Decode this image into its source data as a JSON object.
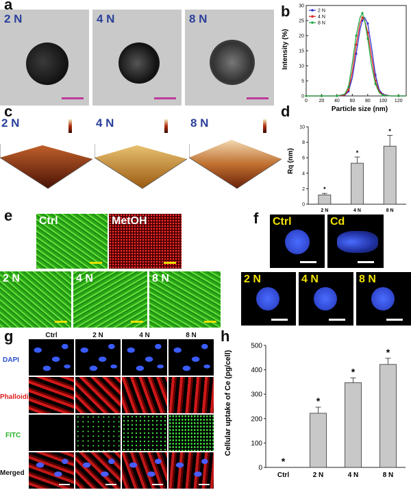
{
  "panels": {
    "a": "a",
    "b": "b",
    "c": "c",
    "d": "d",
    "e": "e",
    "f": "f",
    "g": "g",
    "h": "h"
  },
  "panel_a": {
    "images": [
      "2 N",
      "4 N",
      "8 N"
    ]
  },
  "panel_c": {
    "images": [
      "2 N",
      "4 N",
      "8 N"
    ]
  },
  "panel_e": {
    "top": [
      "Ctrl",
      "MetOH"
    ],
    "bottom": [
      "2 N",
      "4 N",
      "8 N"
    ]
  },
  "panel_f": {
    "top": [
      "Ctrl",
      "Cd"
    ],
    "bottom": [
      "2 N",
      "4 N",
      "8 N"
    ]
  },
  "panel_g": {
    "columns": [
      "Ctrl",
      "2 N",
      "4 N",
      "8 N"
    ],
    "rows": [
      "DAPI",
      "Phalloidin",
      "FITC",
      "Merged"
    ],
    "row_colors": [
      "#2b4fd0",
      "#e02020",
      "#22b022",
      "#111111"
    ]
  },
  "colors": {
    "scale_bar_tem": "#c0399a",
    "label_blue": "#2a3f9a",
    "series_2N": "#3333cc",
    "series_4N": "#dd2222",
    "series_8N": "#22aa44"
  },
  "chart_data": [
    {
      "panel": "b",
      "type": "line",
      "xlabel": "Particle size (nm)",
      "ylabel": "Intensity (%)",
      "xlim": [
        0,
        130
      ],
      "ylim": [
        0,
        30
      ],
      "xticks": [
        0,
        20,
        40,
        60,
        80,
        100,
        120
      ],
      "yticks": [
        0,
        5,
        10,
        15,
        20,
        25,
        30
      ],
      "legend": "top-left",
      "x": [
        0,
        10,
        20,
        30,
        40,
        50,
        55,
        60,
        65,
        70,
        73,
        76,
        80,
        85,
        90,
        95,
        100,
        110,
        120,
        130
      ],
      "series": [
        {
          "name": "2 N",
          "color": "#3333cc",
          "values": [
            0,
            0,
            0,
            0,
            0,
            0.2,
            1.5,
            6,
            14,
            22,
            25,
            26,
            24,
            16,
            7,
            2,
            0.5,
            0,
            0,
            0
          ]
        },
        {
          "name": "4 N",
          "color": "#dd2222",
          "values": [
            0,
            0,
            0,
            0,
            0,
            0.3,
            2,
            8,
            17,
            24,
            26,
            25,
            21,
            13,
            5,
            1.5,
            0.3,
            0,
            0,
            0
          ]
        },
        {
          "name": "8 N",
          "color": "#22aa44",
          "values": [
            0,
            0,
            0,
            0,
            0,
            0.6,
            3,
            11,
            20,
            26,
            27.5,
            25,
            19,
            10,
            4,
            1,
            0.2,
            0,
            0,
            0
          ]
        }
      ]
    },
    {
      "panel": "d",
      "type": "bar",
      "categories": [
        "2 N",
        "4 N",
        "8 N"
      ],
      "values": [
        1.2,
        5.3,
        7.5
      ],
      "errors": [
        0.2,
        0.8,
        1.4
      ],
      "annotations": [
        "*",
        "*",
        "*"
      ],
      "ylabel": "Rq (nm)",
      "ylim": [
        0,
        10
      ],
      "yticks": [
        0,
        2,
        4,
        6,
        8,
        10
      ]
    },
    {
      "panel": "h",
      "type": "bar",
      "categories": [
        "Ctrl",
        "2 N",
        "4 N",
        "8 N"
      ],
      "values": [
        0,
        222,
        347,
        422
      ],
      "errors": [
        0,
        25,
        20,
        25
      ],
      "annotations": [
        "*",
        "*",
        "*",
        "*"
      ],
      "ylabel": "Cellular uptake of Ce (pg/cell)",
      "ylim": [
        0,
        500
      ],
      "yticks": [
        0,
        100,
        200,
        300,
        400,
        500
      ]
    }
  ]
}
